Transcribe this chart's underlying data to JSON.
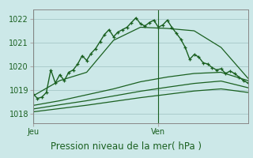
{
  "background_color": "#cce8e8",
  "plot_bg": "#cce8e8",
  "grid_color": "#aacccc",
  "line_color": "#1a6020",
  "title": "Pression niveau de la mer( hPa )",
  "xlabel_jeu": "Jeu",
  "xlabel_ven": "Ven",
  "ylim": [
    1017.6,
    1022.4
  ],
  "yticks": [
    1018,
    1019,
    1020,
    1021,
    1022
  ],
  "total_steps": 48,
  "jeu_step": 0,
  "ven_step": 28,
  "series": [
    {
      "x": [
        0,
        1,
        2,
        3,
        4,
        5,
        6,
        7,
        8,
        9,
        10,
        11,
        12,
        13,
        14,
        15,
        16,
        17,
        18,
        19,
        20,
        21,
        22,
        23,
        24,
        25,
        26,
        27,
        28,
        29,
        30,
        31,
        32,
        33,
        34,
        35,
        36,
        37,
        38,
        39,
        40,
        41,
        42,
        43,
        44,
        45,
        46,
        47,
        48
      ],
      "y": [
        1018.85,
        1018.65,
        1018.7,
        1018.9,
        1019.85,
        1019.3,
        1019.65,
        1019.4,
        1019.75,
        1019.85,
        1020.1,
        1020.45,
        1020.25,
        1020.55,
        1020.75,
        1021.05,
        1021.35,
        1021.55,
        1021.25,
        1021.45,
        1021.55,
        1021.65,
        1021.85,
        1022.05,
        1021.8,
        1021.7,
        1021.85,
        1021.95,
        1021.65,
        1021.75,
        1021.95,
        1021.65,
        1021.4,
        1021.15,
        1020.8,
        1020.3,
        1020.5,
        1020.4,
        1020.15,
        1020.1,
        1019.95,
        1019.85,
        1019.9,
        1019.7,
        1019.8,
        1019.7,
        1019.55,
        1019.4,
        1019.3
      ],
      "marker": true,
      "linewidth": 1.0
    },
    {
      "x": [
        0,
        6,
        12,
        18,
        24,
        30,
        36,
        42,
        48
      ],
      "y": [
        1018.75,
        1019.4,
        1019.75,
        1021.1,
        1021.65,
        1021.6,
        1021.5,
        1020.8,
        1019.5
      ],
      "marker": false,
      "linewidth": 0.9
    },
    {
      "x": [
        0,
        6,
        12,
        18,
        24,
        30,
        36,
        42,
        48
      ],
      "y": [
        1018.35,
        1018.55,
        1018.8,
        1019.05,
        1019.35,
        1019.55,
        1019.7,
        1019.75,
        1019.4
      ],
      "marker": false,
      "linewidth": 0.9
    },
    {
      "x": [
        0,
        6,
        12,
        18,
        24,
        30,
        36,
        42,
        48
      ],
      "y": [
        1018.2,
        1018.38,
        1018.55,
        1018.75,
        1018.95,
        1019.12,
        1019.28,
        1019.38,
        1019.1
      ],
      "marker": false,
      "linewidth": 0.9
    },
    {
      "x": [
        0,
        6,
        12,
        18,
        24,
        30,
        36,
        42,
        48
      ],
      "y": [
        1018.08,
        1018.22,
        1018.36,
        1018.52,
        1018.68,
        1018.82,
        1018.96,
        1019.05,
        1018.9
      ],
      "marker": false,
      "linewidth": 0.9
    }
  ]
}
